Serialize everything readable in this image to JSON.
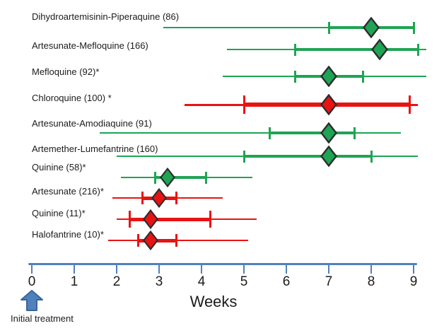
{
  "colors": {
    "green": "#1EA454",
    "red": "#E91313",
    "axis": "#4F81BD",
    "arrow_border": "#3C649B",
    "diamond_border": "#2D2D2D",
    "text": "#1C1C1C"
  },
  "chart_data": {
    "type": "boxplot",
    "orientation": "horizontal",
    "title": "",
    "xlabel": "Weeks",
    "ylabel": "",
    "xlim": [
      0,
      9
    ],
    "x_ticks": [
      0,
      1,
      2,
      3,
      4,
      5,
      6,
      7,
      8,
      9
    ],
    "x_unit": "weeks",
    "grid": false,
    "legend": false,
    "annotation": {
      "label": "Initial treatment",
      "x": 0
    },
    "series": [
      {
        "label": "Dihydroartemisinin-Piperaquine (86)",
        "n": 86,
        "color": "green",
        "min": 3.1,
        "q1": 7.0,
        "median": 8.0,
        "q3": 9.0,
        "max": 9.0
      },
      {
        "label": "Artesunate-Mefloquine (166)",
        "n": 166,
        "color": "green",
        "min": 4.6,
        "q1": 6.2,
        "median": 8.2,
        "q3": 9.1,
        "max": 9.3
      },
      {
        "label": "Mefloquine (92)*",
        "n": 92,
        "color": "green",
        "min": 4.5,
        "q1": 6.2,
        "median": 7.0,
        "q3": 7.8,
        "max": 9.3
      },
      {
        "label": "Chloroquine (100) *",
        "n": 100,
        "color": "red",
        "min": 3.6,
        "q1": 5.0,
        "median": 7.0,
        "q3": 8.9,
        "max": 9.1
      },
      {
        "label": "Artesunate-Amodiaquine (91)",
        "n": 91,
        "color": "green",
        "min": 1.6,
        "q1": 5.6,
        "median": 7.0,
        "q3": 7.6,
        "max": 8.7
      },
      {
        "label": "Artemether-Lumefantrine (160)",
        "n": 160,
        "color": "green",
        "min": 2.0,
        "q1": 5.0,
        "median": 7.0,
        "q3": 8.0,
        "max": 9.1
      },
      {
        "label": "Quinine (58)*",
        "n": 58,
        "color": "green",
        "min": 2.1,
        "q1": 2.9,
        "median": 3.2,
        "q3": 4.1,
        "max": 5.2
      },
      {
        "label": "Artesunate (216)*",
        "n": 216,
        "color": "red",
        "min": 1.9,
        "q1": 2.6,
        "median": 3.0,
        "q3": 3.4,
        "max": 4.5
      },
      {
        "label": "Quinine (11)*",
        "n": 11,
        "color": "red",
        "min": 2.0,
        "q1": 2.3,
        "median": 2.8,
        "q3": 4.2,
        "max": 5.3
      },
      {
        "label": "Halofantrine (10)*",
        "n": 10,
        "color": "red",
        "min": 1.8,
        "q1": 2.5,
        "median": 2.8,
        "q3": 3.4,
        "max": 5.1
      }
    ]
  }
}
